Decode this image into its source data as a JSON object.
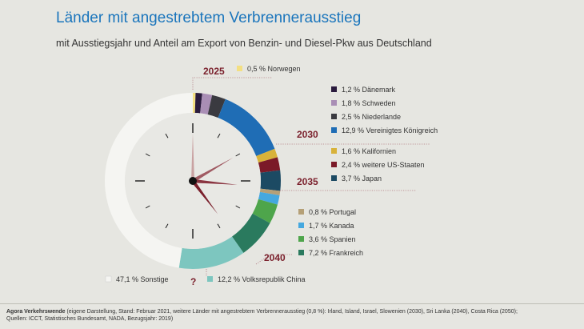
{
  "title": "Länder mit angestrebtem Verbrennerausstieg",
  "subtitle": "mit Ausstiegsjahr und Anteil am Export von Benzin- und Diesel-Pkw aus Deutschland",
  "chart_data": {
    "type": "pie",
    "variant": "donut",
    "title": "Länder mit angestrebtem Verbrennerausstieg",
    "subtitle": "mit Ausstiegsjahr und Anteil am Export von Benzin- und Diesel-Pkw aus Deutschland",
    "slices": [
      {
        "label": "0,5 % Norwegen",
        "value": 0.5,
        "color": "#f3df82",
        "group": "2025"
      },
      {
        "label": "1,2 % Dänemark",
        "value": 1.2,
        "color": "#2a1b3d",
        "group": "2030"
      },
      {
        "label": "1,8 % Schweden",
        "value": 1.8,
        "color": "#a98eb5",
        "group": "2030"
      },
      {
        "label": "2,5 % Niederlande",
        "value": 2.5,
        "color": "#3a3a40",
        "group": "2030"
      },
      {
        "label": "12,9 % Vereinigtes Königreich",
        "value": 12.9,
        "color": "#1f6db5",
        "group": "2030"
      },
      {
        "label": "1,6 % Kalifornien",
        "value": 1.6,
        "color": "#d8b23a",
        "group": "2035"
      },
      {
        "label": "2,4 % weitere US-Staaten",
        "value": 2.4,
        "color": "#7b1a28",
        "group": "2035"
      },
      {
        "label": "3,7 % Japan",
        "value": 3.7,
        "color": "#1c4a63",
        "group": "2035"
      },
      {
        "label": "0,8 % Portugal",
        "value": 0.8,
        "color": "#b5a077",
        "group": "2040"
      },
      {
        "label": "1,7 % Kanada",
        "value": 1.7,
        "color": "#45a8df",
        "group": "2040"
      },
      {
        "label": "3,6 % Spanien",
        "value": 3.6,
        "color": "#4ea54b",
        "group": "2040"
      },
      {
        "label": "7,2 % Frankreich",
        "value": 7.2,
        "color": "#2a7a5e",
        "group": "2040"
      },
      {
        "label": "12,2 % Volksrepublik China",
        "value": 12.2,
        "color": "#7dc6bf",
        "group": "?"
      },
      {
        "label": "47,1 % Sonstige",
        "value": 47.1,
        "color": "#f5f5f2",
        "group": ""
      }
    ],
    "year_labels": [
      "2025",
      "2030",
      "2035",
      "2040",
      "?"
    ],
    "legend_position": "right"
  },
  "footer": {
    "source_name": "Agora Verkehrswende",
    "line1": " (eigene Darstellung, Stand: Februar 2021, weitere Länder mit angestrebtem Verbrennerausstieg (0,8 %): Irland, Island, Israel, Slowenien (2030), Sri Lanka (2040), Costa Rica (2050);",
    "line2": "Quellen: ICCT, Statistisches Bundesamt, NADA, Bezugsjahr: 2019)"
  }
}
